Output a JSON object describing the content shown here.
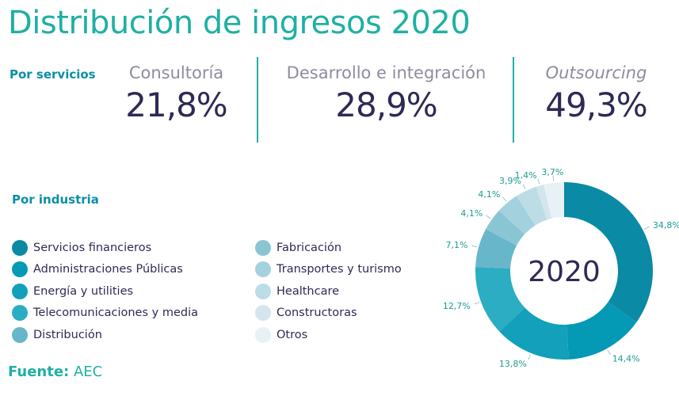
{
  "title": "Distribución de ingresos 2020",
  "services": {
    "heading": "Por servicios",
    "items": [
      {
        "label": "Consultoría",
        "value": "21,8%"
      },
      {
        "label": "Desarrollo e integración",
        "value": "28,9%"
      },
      {
        "label": "Outsourcing",
        "value": "49,3%"
      }
    ]
  },
  "industry_heading": "Por industria",
  "source_label": "Fuente:",
  "source_value": "AEC",
  "chart_data": {
    "type": "pie",
    "variant": "donut",
    "center_label": "2020",
    "categories": [
      "Servicios financieros",
      "Administraciones Públicas",
      "Energía y utilities",
      "Telecomunicaciones y media",
      "Distribución",
      "Fabricación",
      "Transportes y turismo",
      "Healthcare",
      "Constructoras",
      "Otros"
    ],
    "values": [
      34.8,
      14.4,
      13.8,
      12.7,
      7.1,
      4.1,
      4.1,
      3.9,
      1.4,
      3.7
    ],
    "labels": [
      "34,8%",
      "14,4%",
      "13,8%",
      "12,7%",
      "7,1%",
      "4,1%",
      "4,1%",
      "3,9%",
      "1,4%",
      "3,7%"
    ],
    "colors": [
      "#0a8aa4",
      "#0499b5",
      "#12a0bb",
      "#2cadc4",
      "#68b6c9",
      "#8ac5d4",
      "#a3d1de",
      "#bddde6",
      "#d3e6ed",
      "#e8f2f6"
    ],
    "legend_position": "left"
  }
}
